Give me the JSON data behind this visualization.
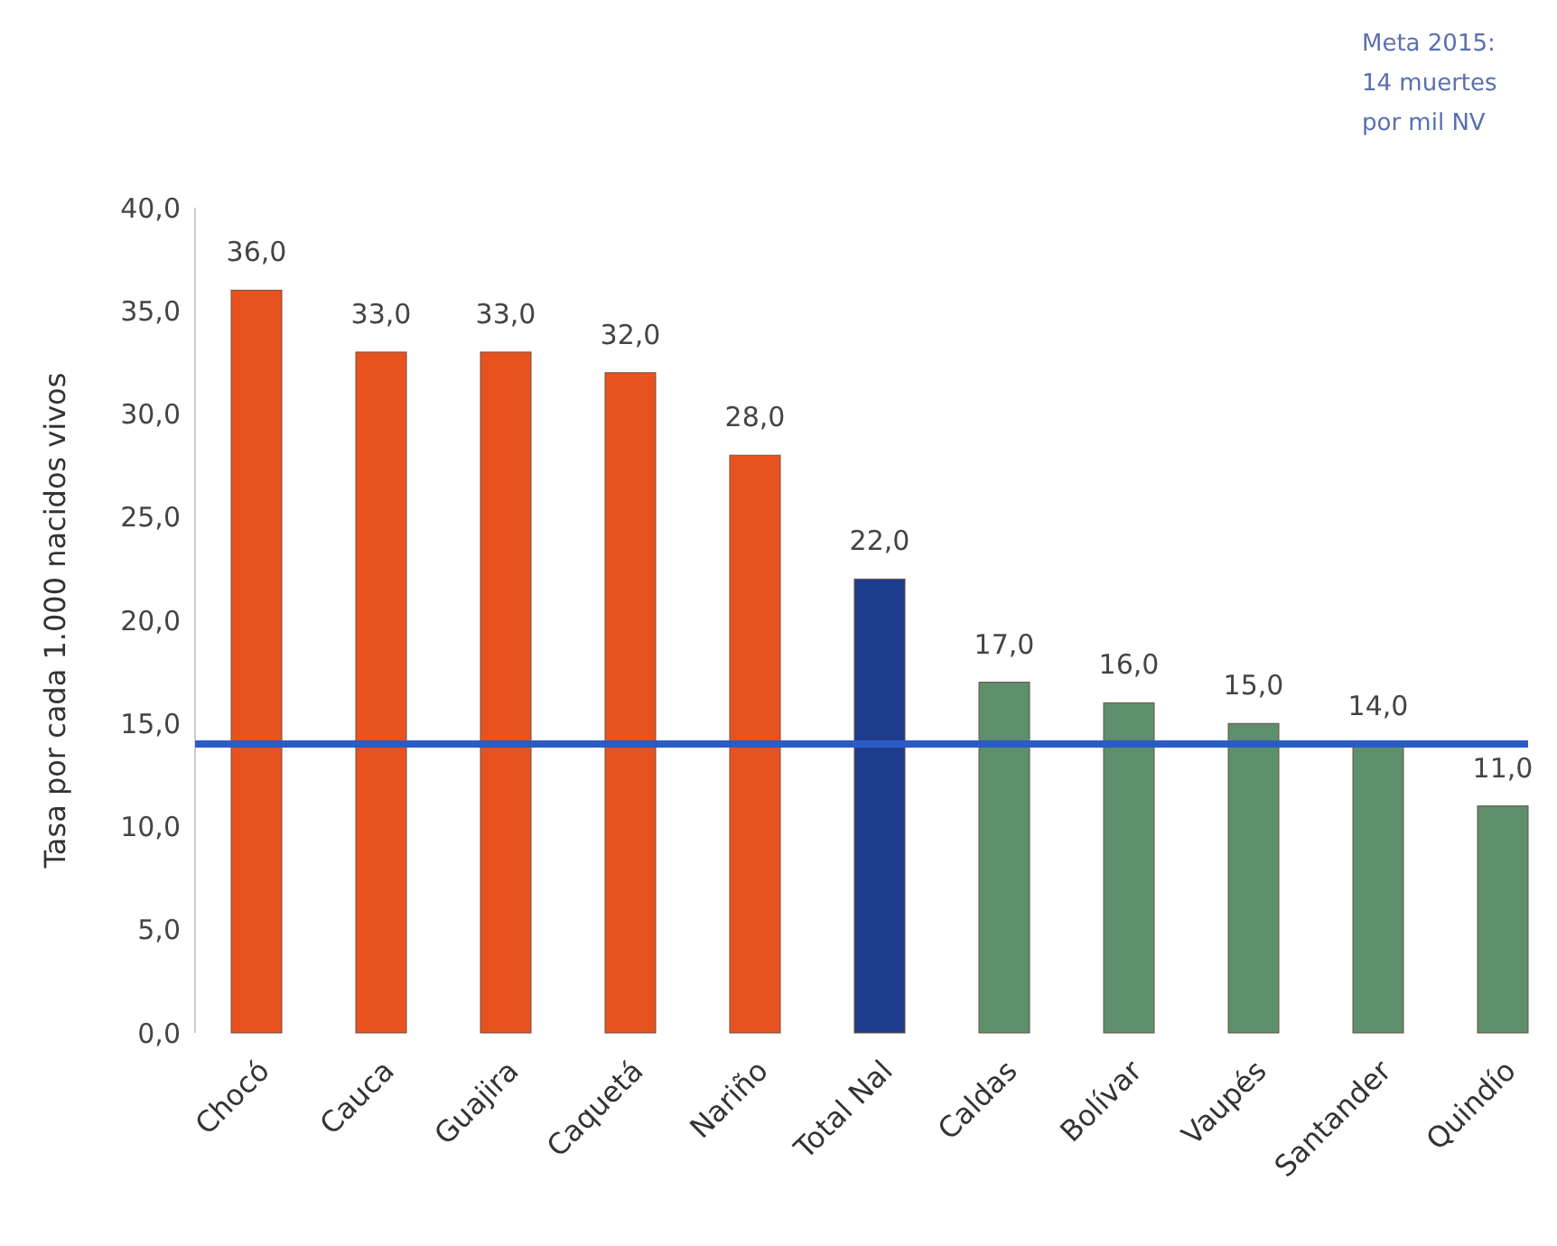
{
  "chart_data": {
    "type": "bar",
    "ylabel": "Tasa por cada 1.000 nacidos vivos",
    "categories": [
      "Chocó",
      "Cauca",
      "Guajira",
      "Caquetá",
      "Nariño",
      "Total Nal",
      "Caldas",
      "Bolívar",
      "Vaupés",
      "Santander",
      "Quindío"
    ],
    "values": [
      36,
      33,
      33,
      32,
      28,
      22,
      17,
      16,
      15,
      14,
      11
    ],
    "value_labels": [
      "36,0",
      "33,0",
      "33,0",
      "32,0",
      "28,0",
      "22,0",
      "17,0",
      "16,0",
      "15,0",
      "14,0",
      "11,0"
    ],
    "colors": [
      "#e8521e",
      "#e8521e",
      "#e8521e",
      "#e8521e",
      "#e8521e",
      "#1e3c8c",
      "#5e8f6c",
      "#5e8f6c",
      "#5e8f6c",
      "#5e8f6c",
      "#5e8f6c"
    ],
    "ylim": [
      0,
      40
    ],
    "yticks": [
      {
        "value": 0,
        "label": "0,0"
      },
      {
        "value": 5,
        "label": "5,0"
      },
      {
        "value": 10,
        "label": "10,0"
      },
      {
        "value": 15,
        "label": "15,0"
      },
      {
        "value": 20,
        "label": "20,0"
      },
      {
        "value": 25,
        "label": "25,0"
      },
      {
        "value": 30,
        "label": "30,0"
      },
      {
        "value": 35,
        "label": "35,0"
      },
      {
        "value": 40,
        "label": "40,0"
      }
    ],
    "ref_lines": [
      {
        "axis": "y",
        "value": 14,
        "color": "#2a5cc4"
      }
    ],
    "annotations": [
      "Meta 2015:\n14 muertes\npor mil NV"
    ],
    "grid": false
  }
}
